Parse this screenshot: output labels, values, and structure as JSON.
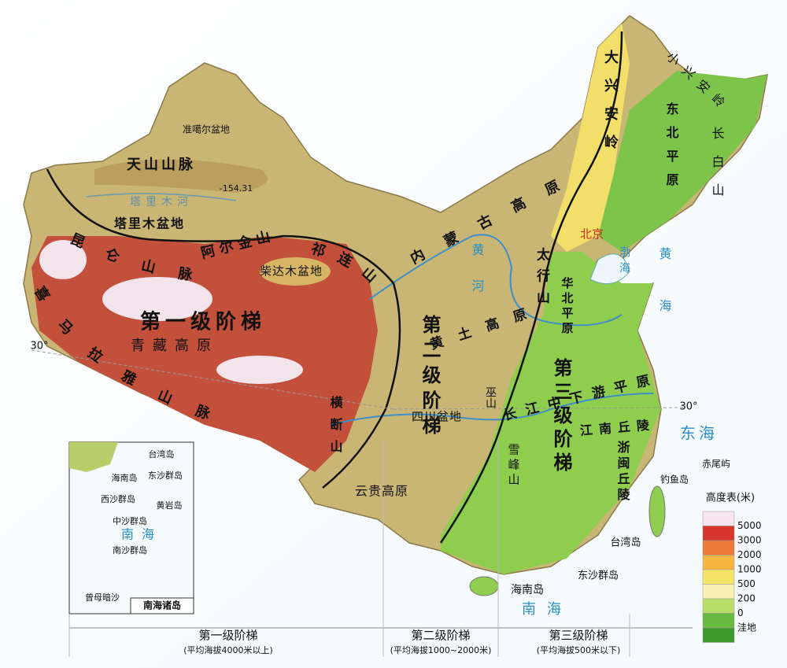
{
  "map": {
    "labels": [
      "准噶尔盆地",
      "天山山脉",
      "-154.31",
      "塔里木河",
      "塔里木盆地",
      "昆仑山脉",
      "阿尔金山",
      "祁连山",
      "柴达木盆地",
      "第一级阶梯",
      "青藏高原",
      "喜马拉雅山脉",
      "横断山",
      "内蒙古高原",
      "大兴安岭",
      "小兴安岭",
      "长白山",
      "东北平原",
      "北京",
      "太行山",
      "华北平原",
      "黄土高原",
      "黄河",
      "渤海",
      "黄海",
      "第二级阶梯",
      "第三级阶梯",
      "四川盆地",
      "巫山",
      "长江中下游平原",
      "江南丘陵",
      "浙闽丘陵",
      "雪峰山",
      "云贵高原",
      "东海",
      "赤尾屿",
      "钓鱼岛",
      "台湾岛",
      "东沙群岛",
      "海南岛",
      "南海",
      "30°",
      "30°"
    ],
    "inset": {
      "labels": [
        "台湾岛",
        "东沙群岛",
        "海南岛",
        "西沙群岛",
        "黄岩岛",
        "中沙群岛",
        "南海",
        "南沙群岛",
        "曾母暗沙"
      ],
      "title": "南海诸岛"
    },
    "steps": [
      {
        "name": "第一级阶梯",
        "note": "(平均海拔4000米以上)"
      },
      {
        "name": "第二级阶梯",
        "note": "(平均海拔1000~2000米)"
      },
      {
        "name": "第三级阶梯",
        "note": "(平均海拔500米以下)"
      }
    ],
    "legend": {
      "title": "高度表(米)",
      "labels": [
        5000,
        3000,
        2000,
        1000,
        500,
        200,
        0,
        "洼地"
      ],
      "colors": [
        "#f6e4ee",
        "#d8362a",
        "#ee7a3a",
        "#f6b640",
        "#f6e36a",
        "#f7f0b0",
        "#b9dd66",
        "#66bb3e",
        "#3f9a2c"
      ]
    }
  }
}
